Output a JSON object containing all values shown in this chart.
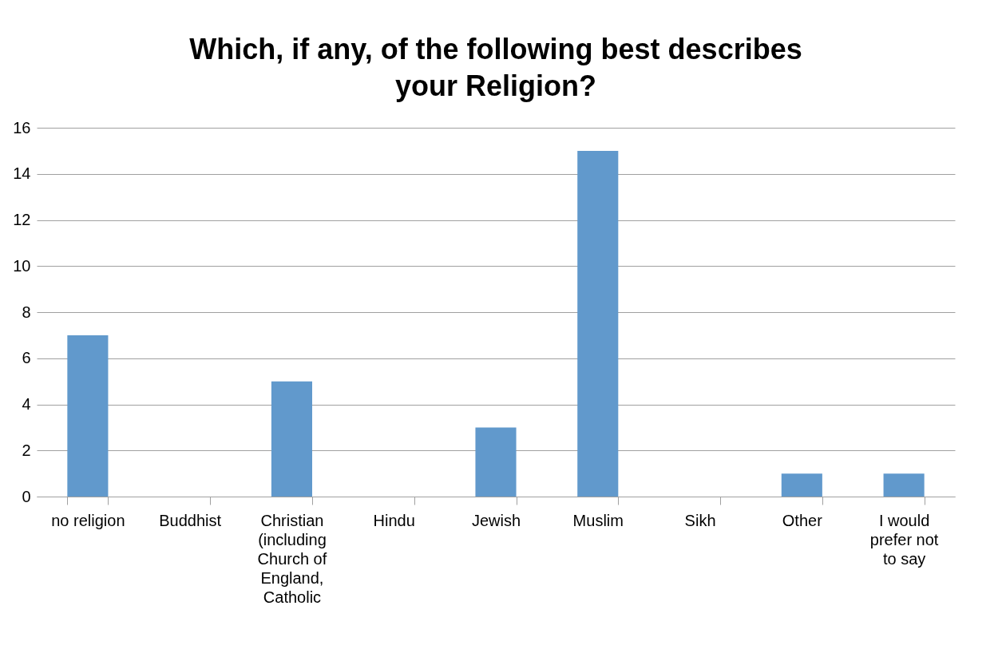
{
  "chart_data": {
    "type": "bar",
    "title": "Which, if any, of the following best describes your Religion?",
    "categories": [
      "no religion",
      "Buddhist",
      "Christian (including Church of England, Catholic",
      "Hindu",
      "Jewish",
      "Muslim",
      "Sikh",
      "Other",
      "I would prefer not to say"
    ],
    "values": [
      7,
      0,
      5,
      0,
      3,
      15,
      0,
      1,
      1
    ],
    "color": "#6199cc",
    "ylim": [
      0,
      16
    ],
    "yticks": [
      0,
      2,
      4,
      6,
      8,
      10,
      12,
      14,
      16
    ],
    "grid": "y"
  }
}
